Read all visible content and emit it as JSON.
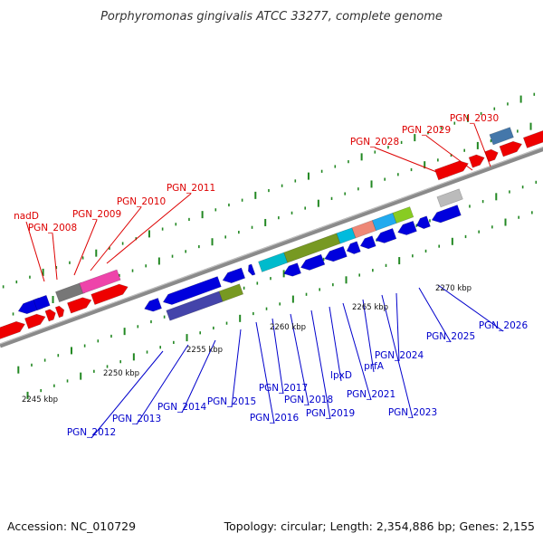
{
  "title": "Porphyromonas gingivalis ATCC 33277, complete genome",
  "footer": {
    "accession": "Accession: NC_010729",
    "summary": "Topology: circular; Length: 2,354,886 bp; Genes: 2,155"
  },
  "colors": {
    "forward_label": "#dd0000",
    "reverse_label": "#0000cc",
    "forward_gene": "#ee0000",
    "reverse_gene": "#0000dd",
    "dot": "#228822",
    "backbone": "#8a8a8a"
  },
  "scale_marks": [
    "2245 kbp",
    "2250 kbp",
    "2255 kbp",
    "2260 kbp",
    "2265 kbp",
    "2270 kbp"
  ],
  "forward_labels": [
    "nadD",
    "PGN_2008",
    "PGN_2009",
    "PGN_2010",
    "PGN_2011",
    "PGN_2028",
    "PGN_2029",
    "PGN_2030"
  ],
  "reverse_labels": [
    "PGN_2012",
    "PGN_2013",
    "PGN_2014",
    "PGN_2015",
    "PGN_2016",
    "PGN_2017",
    "PGN_2018",
    "PGN_2019",
    "lpxD",
    "PGN_2021",
    "prfA",
    "PGN_2023",
    "PGN_2024",
    "PGN_2025",
    "PGN_2026"
  ]
}
